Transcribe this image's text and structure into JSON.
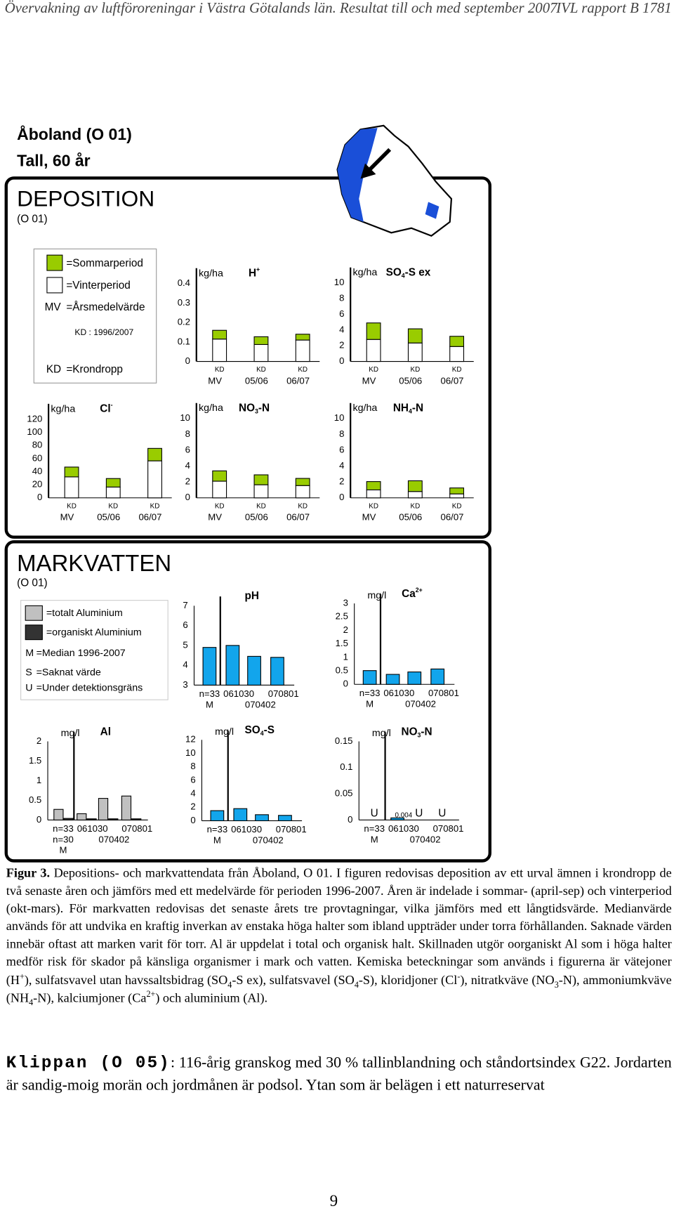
{
  "header": {
    "left": "Övervakning av luftföroreningar i Västra Götalands län. Resultat till och med september 2007",
    "right": "IVL rapport B 1781"
  },
  "site": {
    "title": "Åboland (O 01)",
    "subtitle": "Tall, 60 år"
  },
  "deposition": {
    "heading": "DEPOSITION",
    "code": "(O 01)",
    "legend": {
      "items": [
        {
          "label": "=Sommarperiod",
          "color": "#99cc00"
        },
        {
          "label": "=Vinterperiod",
          "color": "#ffffff"
        }
      ],
      "mv_key": "MV",
      "mv_text": "=Årsmedelvärde",
      "kd_period": "KD : 1996/2007",
      "kd_key": "KD",
      "kd_text": "=Krondropp"
    },
    "charts": [
      {
        "type": "bar",
        "stacked": true,
        "title": [
          "H",
          {
            "sup": "+"
          }
        ],
        "unit": "kg/ha",
        "categories": [
          "MV",
          "05/06",
          "06/07"
        ],
        "bar_labels": [
          "KD",
          "KD",
          "KD"
        ],
        "ylim": [
          0,
          0.4
        ],
        "yticks": [
          0,
          0.1,
          0.2,
          0.3,
          0.4
        ],
        "series": [
          {
            "color": "#ffffff",
            "values": [
              0.115,
              0.087,
              0.11
            ]
          },
          {
            "color": "#99cc00",
            "values": [
              0.045,
              0.04,
              0.03
            ]
          }
        ]
      },
      {
        "type": "bar",
        "stacked": true,
        "title": [
          "SO",
          {
            "sub": "4"
          },
          "-S ex"
        ],
        "unit": "kg/ha",
        "categories": [
          "MV",
          "05/06",
          "06/07"
        ],
        "bar_labels": [
          "KD",
          "KD",
          "KD"
        ],
        "ylim": [
          0,
          10
        ],
        "yticks": [
          0,
          2,
          4,
          6,
          8,
          10
        ],
        "series": [
          {
            "color": "#ffffff",
            "values": [
              2.8,
              2.35,
              1.9
            ]
          },
          {
            "color": "#99cc00",
            "values": [
              2.1,
              1.8,
              1.3
            ]
          }
        ]
      },
      {
        "type": "bar",
        "stacked": true,
        "title": [
          "Cl",
          {
            "sup": "-"
          }
        ],
        "unit": "kg/ha",
        "categories": [
          "MV",
          "05/06",
          "06/07"
        ],
        "bar_labels": [
          "KD",
          "KD",
          "KD"
        ],
        "ylim": [
          0,
          120
        ],
        "yticks": [
          0,
          20,
          40,
          60,
          80,
          100,
          120
        ],
        "series": [
          {
            "color": "#ffffff",
            "values": [
              32,
              16.5,
              56.5
            ]
          },
          {
            "color": "#99cc00",
            "values": [
              15,
              13,
              19
            ]
          }
        ]
      },
      {
        "type": "bar",
        "stacked": true,
        "title": [
          "NO",
          {
            "sub": "3"
          },
          "-N"
        ],
        "unit": "kg/ha",
        "categories": [
          "MV",
          "05/06",
          "06/07"
        ],
        "bar_labels": [
          "KD",
          "KD",
          "KD"
        ],
        "ylim": [
          0,
          10
        ],
        "yticks": [
          0,
          2,
          4,
          6,
          8,
          10
        ],
        "series": [
          {
            "color": "#ffffff",
            "values": [
              2.1,
              1.65,
              1.55
            ]
          },
          {
            "color": "#99cc00",
            "values": [
              1.3,
              1.25,
              0.9
            ]
          }
        ]
      },
      {
        "type": "bar",
        "stacked": true,
        "title": [
          "NH",
          {
            "sub": "4"
          },
          "-N"
        ],
        "unit": "kg/ha",
        "categories": [
          "MV",
          "05/06",
          "06/07"
        ],
        "bar_labels": [
          "KD",
          "KD",
          "KD"
        ],
        "ylim": [
          0,
          10
        ],
        "yticks": [
          0,
          2,
          4,
          6,
          8,
          10
        ],
        "series": [
          {
            "color": "#ffffff",
            "values": [
              1.0,
              0.8,
              0.5
            ]
          },
          {
            "color": "#99cc00",
            "values": [
              1.05,
              1.35,
              0.75
            ]
          }
        ]
      }
    ]
  },
  "soil_water": {
    "heading": "MARKVATTEN",
    "code": "(O 01)",
    "legend": {
      "items": [
        {
          "label": "=totalt Aluminium",
          "color": "#c0c0c0"
        },
        {
          "label": "=organiskt Aluminium",
          "color": "#333333"
        }
      ],
      "keys": [
        {
          "key": "M",
          "text": "=Median 1996-2007"
        },
        {
          "key": "S",
          "text": "=Saknat värde"
        },
        {
          "key": "U",
          "text": "=Under detektionsgräns"
        }
      ]
    },
    "charts": [
      {
        "type": "bar",
        "title": "pH",
        "categories": [
          "n=33",
          "061030",
          "070402",
          "070801"
        ],
        "extra_labels": [
          "M"
        ],
        "ylim": [
          3,
          7
        ],
        "yticks": [
          3,
          4,
          5,
          6,
          7
        ],
        "series": [
          {
            "color": "#12a5ec",
            "values": [
              4.9,
              5.0,
              4.45,
              4.4
            ]
          }
        ]
      },
      {
        "type": "bar",
        "title": [
          "Ca",
          {
            "sup": "2+"
          }
        ],
        "unit": "mg/l",
        "categories": [
          "n=33",
          "061030",
          "070402",
          "070801"
        ],
        "extra_labels": [
          "M"
        ],
        "ylim": [
          0,
          3
        ],
        "yticks": [
          0,
          0.5,
          1,
          1.5,
          2,
          2.5,
          3
        ],
        "series": [
          {
            "color": "#12a5ec",
            "values": [
              0.51,
              0.37,
              0.46,
              0.57
            ]
          }
        ]
      },
      {
        "type": "bar",
        "title": "Al",
        "unit": "mg/l",
        "categories": [
          "n=33",
          "061030",
          "070402",
          "070801"
        ],
        "extra_labels": [
          "n=30",
          "M"
        ],
        "ylim": [
          0,
          2
        ],
        "yticks": [
          0,
          0.5,
          1,
          1.5,
          2
        ],
        "series": [
          {
            "color": "#c0c0c0",
            "values": [
              0.27,
              0.16,
              0.55,
              0.61
            ]
          },
          {
            "color": "#333333",
            "values": [
              0.04,
              0.03,
              0.03,
              0.03
            ]
          }
        ]
      },
      {
        "type": "bar",
        "title": [
          "SO",
          {
            "sub": "4"
          },
          "-S"
        ],
        "unit": "mg/l",
        "categories": [
          "n=33",
          "061030",
          "070402",
          "070801"
        ],
        "extra_labels": [
          "M"
        ],
        "ylim": [
          0,
          12
        ],
        "yticks": [
          0,
          2,
          4,
          6,
          8,
          10,
          12
        ],
        "series": [
          {
            "color": "#12a5ec",
            "values": [
              1.5,
              1.8,
              0.9,
              0.8
            ]
          }
        ]
      },
      {
        "type": "bar",
        "title": [
          "NO",
          {
            "sub": "3"
          },
          "-N"
        ],
        "unit": "mg/l",
        "categories": [
          "n=33",
          "061030",
          "070402",
          "070801"
        ],
        "extra_labels": [
          "M"
        ],
        "ylim": [
          0,
          0.15
        ],
        "yticks": [
          0,
          0.05,
          0.1,
          0.15
        ],
        "series": [
          {
            "color": "#12a5ec",
            "values": [
              null,
              0.004,
              null,
              null
            ],
            "value_labels": [
              "U",
              "0.004",
              "U",
              "U"
            ]
          }
        ]
      }
    ]
  },
  "caption": {
    "label": "Figur 3.",
    "runs": [
      " Depositions- och markvattendata från Åboland, O 01. I figuren redovisas deposition av ett urval ämnen i krondropp de två senaste åren och jämförs med ett medelvärde för perioden 1996-2007. Åren är indelade i sommar- (april-sep) och vinterperiod (okt-mars). För markvatten redovisas det senaste årets tre provtagningar, vilka jämförs med ett långtidsvärde. Medianvärde används för att undvika en kraftig inverkan av enstaka höga halter som ibland uppträder under torra förhållanden. Saknade värden innebär oftast att marken varit för torr. Al är uppdelat i total och organisk halt. Skillnaden utgör oorganiskt Al som i höga halter medför risk för skador på känsliga organismer i mark och vatten. Kemiska beteckningar som används i figurerna är vätejoner (H",
      {
        "sup": "+"
      },
      "), sulfatsvavel utan havssaltsbidrag (SO",
      {
        "sub": "4"
      },
      "-S ex), sulfatsvavel (SO",
      {
        "sub": "4"
      },
      "-S), kloridjoner (Cl",
      {
        "sup": "-"
      },
      "), nitratkväve (NO",
      {
        "sub": "3"
      },
      "-N), ammoniumkväve (NH",
      {
        "sub": "4"
      },
      "-N), kalciumjoner (Ca",
      {
        "sup": "2+"
      },
      ") och aluminium (Al)."
    ]
  },
  "next_site": {
    "name": "Klippan (O 05)",
    "text": ": 116-årig granskog med 30 % tallinblandning och ståndortsindex G22. Jordarten är sandig-moig morän och jordmånen är podsol. Ytan som är belägen i ett naturreservat"
  },
  "page_number": "9"
}
